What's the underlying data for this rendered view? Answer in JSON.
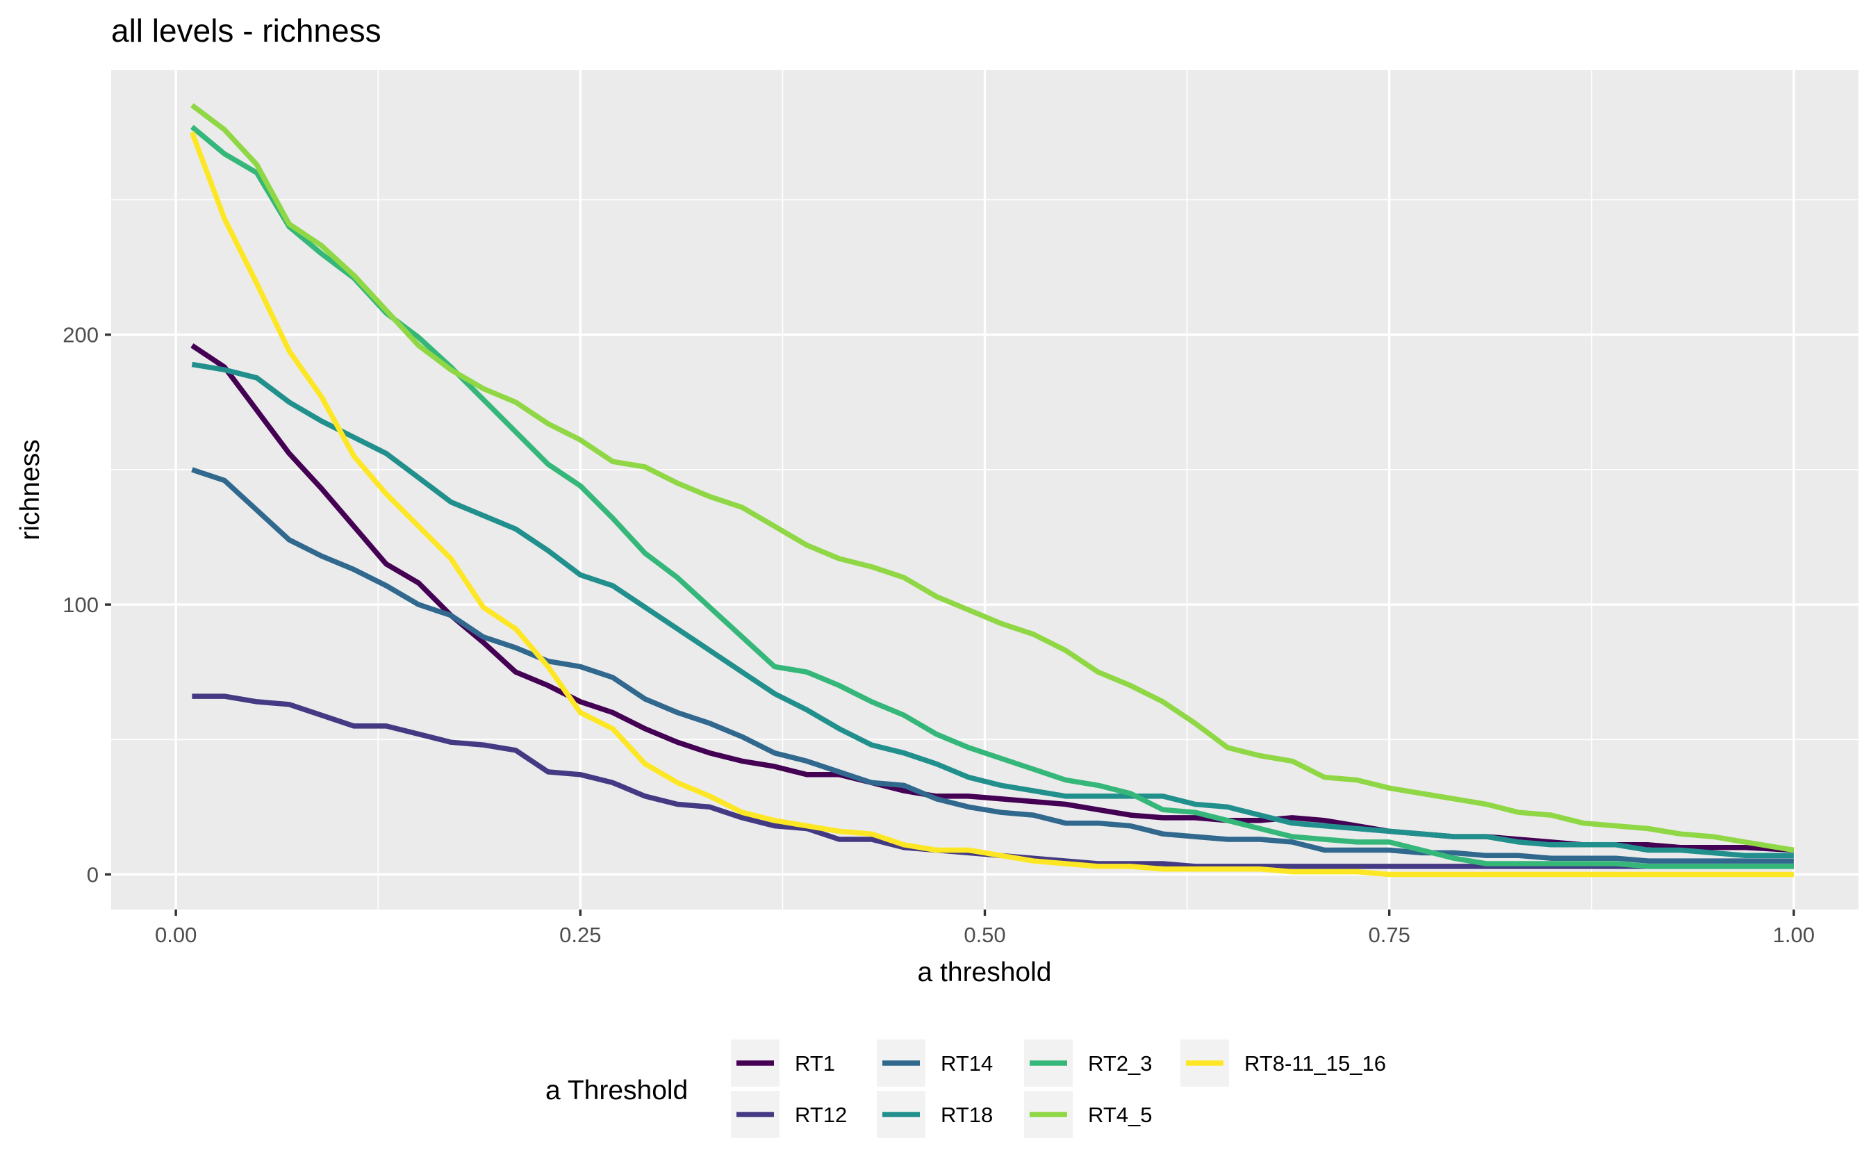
{
  "chart_data": {
    "type": "line",
    "title": "all levels - richness",
    "xlabel": "a threshold",
    "ylabel": "richness",
    "xlim": [
      -0.04,
      1.04
    ],
    "ylim": [
      -13,
      298
    ],
    "x_ticks": [
      0.0,
      0.25,
      0.5,
      0.75,
      1.0
    ],
    "x_tick_labels": [
      "0.00",
      "0.25",
      "0.50",
      "0.75",
      "1.00"
    ],
    "y_ticks": [
      0,
      100,
      200
    ],
    "y_tick_labels": [
      "0",
      "100",
      "200"
    ],
    "grid": true,
    "legend": {
      "title": "a Threshold",
      "position": "bottom",
      "layout": "columns-2-rows"
    },
    "x": [
      0.01,
      0.03,
      0.05,
      0.07,
      0.09,
      0.11,
      0.13,
      0.15,
      0.17,
      0.19,
      0.21,
      0.23,
      0.25,
      0.27,
      0.29,
      0.31,
      0.33,
      0.35,
      0.37,
      0.39,
      0.41,
      0.43,
      0.45,
      0.47,
      0.49,
      0.51,
      0.53,
      0.55,
      0.57,
      0.59,
      0.61,
      0.63,
      0.65,
      0.67,
      0.69,
      0.71,
      0.73,
      0.75,
      0.77,
      0.79,
      0.81,
      0.83,
      0.85,
      0.87,
      0.89,
      0.91,
      0.93,
      0.95,
      0.97,
      1.0
    ],
    "series": [
      {
        "name": "RT1",
        "color": "#440154",
        "values": [
          196,
          188,
          172,
          156,
          143,
          129,
          115,
          108,
          96,
          86,
          75,
          70,
          64,
          60,
          54,
          49,
          45,
          42,
          40,
          37,
          37,
          34,
          31,
          29,
          29,
          28,
          27,
          26,
          24,
          22,
          21,
          21,
          20,
          20,
          21,
          20,
          18,
          16,
          15,
          14,
          14,
          13,
          12,
          11,
          11,
          11,
          10,
          10,
          10,
          9
        ]
      },
      {
        "name": "RT12",
        "color": "#443A83",
        "values": [
          66,
          66,
          64,
          63,
          59,
          55,
          55,
          52,
          49,
          48,
          46,
          38,
          37,
          34,
          29,
          26,
          25,
          21,
          18,
          17,
          13,
          13,
          10,
          9,
          8,
          7,
          6,
          5,
          4,
          4,
          4,
          3,
          3,
          3,
          3,
          3,
          3,
          3,
          3,
          3,
          3,
          3,
          3,
          3,
          3,
          3,
          3,
          3,
          3,
          3
        ]
      },
      {
        "name": "RT14",
        "color": "#31688E",
        "values": [
          150,
          146,
          135,
          124,
          118,
          113,
          107,
          100,
          96,
          88,
          84,
          79,
          77,
          73,
          65,
          60,
          56,
          51,
          45,
          42,
          38,
          34,
          33,
          28,
          25,
          23,
          22,
          19,
          19,
          18,
          15,
          14,
          13,
          13,
          12,
          9,
          9,
          9,
          8,
          8,
          7,
          7,
          6,
          6,
          6,
          5,
          5,
          5,
          5,
          5
        ]
      },
      {
        "name": "RT18",
        "color": "#21908D",
        "values": [
          189,
          187,
          184,
          175,
          168,
          162,
          156,
          147,
          138,
          133,
          128,
          120,
          111,
          107,
          99,
          91,
          83,
          75,
          67,
          61,
          54,
          48,
          45,
          41,
          36,
          33,
          31,
          29,
          29,
          29,
          29,
          26,
          25,
          22,
          19,
          18,
          17,
          16,
          15,
          14,
          14,
          12,
          11,
          11,
          11,
          9,
          9,
          8,
          7,
          7
        ]
      },
      {
        "name": "RT2_3",
        "color": "#35B779",
        "values": [
          277,
          267,
          260,
          240,
          230,
          221,
          208,
          199,
          188,
          176,
          164,
          152,
          144,
          132,
          119,
          110,
          99,
          88,
          77,
          75,
          70,
          64,
          59,
          52,
          47,
          43,
          39,
          35,
          33,
          30,
          24,
          23,
          20,
          17,
          14,
          13,
          12,
          12,
          9,
          6,
          4,
          4,
          4,
          4,
          4,
          3,
          3,
          3,
          3,
          3
        ]
      },
      {
        "name": "RT4_5",
        "color": "#8FD744",
        "values": [
          285,
          276,
          263,
          241,
          233,
          222,
          209,
          196,
          187,
          180,
          175,
          167,
          161,
          153,
          151,
          145,
          140,
          136,
          129,
          122,
          117,
          114,
          110,
          103,
          98,
          93,
          89,
          83,
          75,
          70,
          64,
          56,
          47,
          44,
          42,
          36,
          35,
          32,
          30,
          28,
          26,
          23,
          22,
          19,
          18,
          17,
          15,
          14,
          12,
          9
        ]
      },
      {
        "name": "RT8-11_15_16",
        "color": "#FDE725",
        "values": [
          275,
          243,
          219,
          194,
          177,
          155,
          141,
          129,
          117,
          99,
          91,
          77,
          60,
          54,
          41,
          34,
          29,
          23,
          20,
          18,
          16,
          15,
          11,
          9,
          9,
          7,
          5,
          4,
          3,
          3,
          2,
          2,
          2,
          2,
          1,
          1,
          1,
          0,
          0,
          0,
          0,
          0,
          0,
          0,
          0,
          0,
          0,
          0,
          0,
          0
        ]
      }
    ]
  }
}
